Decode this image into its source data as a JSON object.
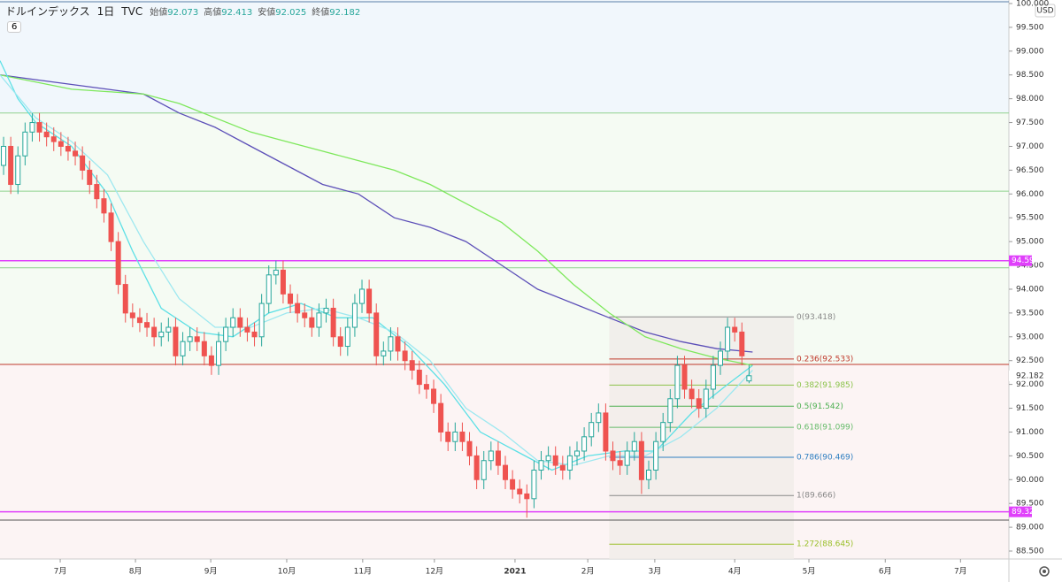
{
  "chart_data": {
    "type": "candlestick",
    "title": "ドルインデックス",
    "interval": "1日",
    "exchange": "TVC",
    "currency": "USD",
    "indicator_count": 6,
    "ohlc": [
      {
        "label": "始値",
        "value": 92.073
      },
      {
        "label": "高値",
        "value": 92.413
      },
      {
        "label": "安値",
        "value": 92.025
      },
      {
        "label": "終値",
        "value": 92.182
      }
    ],
    "xlim": [
      0,
      281.5
    ],
    "ylim": [
      88.333,
      100.074
    ],
    "xticks": [
      {
        "value": 16.8,
        "label": "7月"
      },
      {
        "value": 37.8,
        "label": "8月"
      },
      {
        "value": 58.8,
        "label": "9月"
      },
      {
        "value": 80,
        "label": "10月"
      },
      {
        "value": 101.2,
        "label": "11月"
      },
      {
        "value": 121.2,
        "label": "12月"
      },
      {
        "value": 143.7,
        "label": "2021"
      },
      {
        "value": 164,
        "label": "2月"
      },
      {
        "value": 182.7,
        "label": "3月"
      },
      {
        "value": 205,
        "label": "4月"
      },
      {
        "value": 225.7,
        "label": "5月"
      },
      {
        "value": 247,
        "label": "6月"
      },
      {
        "value": 268,
        "label": "7月"
      }
    ],
    "yticks": [
      {
        "value": 100,
        "label": "100.000"
      },
      {
        "value": 99.5,
        "label": "99.500"
      },
      {
        "value": 99,
        "label": "99.000"
      },
      {
        "value": 98.5,
        "label": "98.500"
      },
      {
        "value": 98,
        "label": "98.000"
      },
      {
        "value": 97.5,
        "label": "97.500"
      },
      {
        "value": 97,
        "label": "97.000"
      },
      {
        "value": 96.5,
        "label": "96.500"
      },
      {
        "value": 96,
        "label": "96.000"
      },
      {
        "value": 95.5,
        "label": "95.500"
      },
      {
        "value": 95,
        "label": "95.000"
      },
      {
        "value": 94.5,
        "label": "94.500"
      },
      {
        "value": 94,
        "label": "94.000"
      },
      {
        "value": 93.5,
        "label": "93.500"
      },
      {
        "value": 93,
        "label": "93.000"
      },
      {
        "value": 92.5,
        "label": "92.500"
      },
      {
        "value": 92,
        "label": "92.000"
      },
      {
        "value": 91.5,
        "label": "91.500"
      },
      {
        "value": 91,
        "label": "91.000"
      },
      {
        "value": 90.5,
        "label": "90.500"
      },
      {
        "value": 90,
        "label": "90.000"
      },
      {
        "value": 89.5,
        "label": "89.500"
      },
      {
        "value": 89,
        "label": "89.000"
      },
      {
        "value": 88.5,
        "label": "88.500"
      }
    ],
    "up_color": "#26a69a",
    "down_color": "#ef5350",
    "x": [
      1,
      3,
      5,
      7,
      9,
      11,
      13,
      15,
      17,
      19,
      21,
      23,
      25,
      27,
      29,
      31,
      33,
      35,
      37,
      39,
      41,
      43,
      45,
      47,
      49,
      51,
      53,
      55,
      57,
      59,
      61,
      63,
      65,
      67,
      69,
      71,
      73,
      75,
      77,
      79,
      81,
      83,
      85,
      87,
      89,
      91,
      93,
      95,
      97,
      99,
      101,
      103,
      105,
      107,
      109,
      111,
      113,
      115,
      117,
      119,
      121,
      123,
      125,
      127,
      129,
      131,
      133,
      135,
      137,
      139,
      141,
      143,
      145,
      147,
      149,
      151,
      153,
      155,
      157,
      159,
      161,
      163,
      165,
      167,
      169,
      171,
      173,
      175,
      177,
      179,
      181,
      183,
      185,
      187,
      189,
      191,
      193,
      195,
      197,
      199,
      201,
      203,
      205,
      207,
      209
    ],
    "open": [
      96.6,
      97.0,
      96.2,
      96.8,
      97.3,
      97.5,
      97.3,
      97.2,
      97.1,
      97.0,
      96.9,
      96.8,
      96.5,
      96.2,
      95.9,
      95.6,
      95.0,
      94.1,
      93.5,
      93.4,
      93.3,
      93.2,
      93.0,
      93.1,
      93.2,
      92.6,
      92.9,
      93.0,
      92.9,
      92.6,
      92.4,
      92.9,
      93.2,
      93.4,
      93.2,
      93.1,
      93.0,
      93.7,
      94.3,
      94.4,
      93.9,
      93.7,
      93.5,
      93.4,
      93.2,
      93.5,
      93.6,
      93.0,
      92.8,
      93.2,
      93.7,
      94.0,
      93.5,
      92.6,
      92.7,
      93.0,
      92.7,
      92.5,
      92.3,
      92.0,
      91.9,
      91.6,
      91.0,
      90.8,
      91.0,
      90.8,
      90.5,
      90.0,
      90.4,
      90.6,
      90.3,
      90.0,
      89.8,
      89.7,
      89.6,
      90.2,
      90.4,
      90.5,
      90.3,
      90.2,
      90.5,
      90.6,
      90.9,
      91.2,
      91.4,
      90.6,
      90.4,
      90.3,
      90.6,
      90.8,
      90.0,
      90.2,
      90.8,
      91.2,
      91.7,
      92.4,
      91.9,
      91.7,
      91.5,
      91.9,
      92.4,
      92.7,
      93.2,
      93.1,
      92.073
    ],
    "high": [
      97.2,
      97.2,
      97.0,
      97.5,
      97.7,
      97.7,
      97.5,
      97.4,
      97.3,
      97.2,
      97.1,
      97.0,
      96.7,
      96.4,
      96.1,
      95.8,
      95.2,
      94.3,
      93.7,
      93.6,
      93.5,
      93.4,
      93.3,
      93.4,
      93.4,
      93.1,
      93.2,
      93.2,
      93.1,
      92.8,
      93.1,
      93.4,
      93.6,
      93.6,
      93.4,
      93.3,
      93.9,
      94.5,
      94.6,
      94.6,
      94.1,
      93.9,
      93.7,
      93.6,
      93.7,
      93.8,
      93.8,
      93.2,
      93.4,
      93.9,
      94.2,
      94.2,
      93.7,
      92.9,
      93.2,
      93.2,
      92.9,
      92.7,
      92.5,
      92.2,
      92.1,
      91.8,
      91.2,
      91.2,
      91.2,
      91.0,
      90.7,
      90.6,
      90.8,
      90.8,
      90.5,
      90.2,
      90.0,
      89.9,
      90.4,
      90.6,
      90.7,
      90.7,
      90.5,
      90.7,
      90.8,
      91.1,
      91.4,
      91.6,
      91.6,
      90.8,
      90.6,
      90.8,
      91.0,
      91.0,
      90.4,
      91.0,
      91.4,
      91.9,
      92.6,
      92.6,
      92.1,
      91.9,
      92.1,
      92.6,
      92.9,
      93.4,
      93.4,
      93.3,
      92.413
    ],
    "low": [
      96.4,
      96.0,
      96.0,
      96.6,
      97.1,
      97.1,
      97.0,
      96.9,
      96.8,
      96.7,
      96.6,
      96.3,
      96.0,
      95.7,
      95.4,
      94.8,
      93.9,
      93.3,
      93.2,
      93.1,
      93.0,
      92.8,
      92.8,
      92.9,
      92.4,
      92.4,
      92.7,
      92.7,
      92.4,
      92.2,
      92.2,
      92.7,
      93.0,
      93.0,
      92.9,
      92.8,
      92.8,
      93.5,
      94.1,
      93.7,
      93.5,
      93.3,
      93.2,
      93.0,
      93.0,
      93.3,
      92.8,
      92.6,
      92.6,
      93.0,
      93.5,
      93.3,
      92.4,
      92.4,
      92.5,
      92.5,
      92.3,
      92.1,
      91.8,
      91.7,
      91.4,
      90.8,
      90.6,
      90.6,
      90.6,
      90.3,
      89.8,
      89.8,
      90.2,
      90.1,
      89.8,
      89.6,
      89.5,
      89.2,
      89.4,
      90.0,
      90.2,
      90.1,
      90.0,
      90.0,
      90.3,
      90.4,
      90.7,
      91.0,
      90.4,
      90.2,
      90.1,
      90.1,
      90.4,
      89.7,
      89.8,
      90.0,
      90.6,
      91.0,
      91.5,
      91.7,
      91.5,
      91.3,
      91.3,
      91.7,
      92.2,
      92.5,
      92.9,
      92.4,
      92.025
    ],
    "close": [
      97.0,
      96.2,
      96.8,
      97.3,
      97.5,
      97.3,
      97.2,
      97.1,
      97.0,
      96.9,
      96.8,
      96.5,
      96.2,
      95.9,
      95.6,
      95.0,
      94.1,
      93.5,
      93.4,
      93.3,
      93.2,
      93.0,
      93.1,
      93.2,
      92.6,
      92.9,
      93.0,
      92.9,
      92.6,
      92.4,
      92.9,
      93.2,
      93.4,
      93.2,
      93.1,
      93.0,
      93.7,
      94.3,
      94.4,
      93.9,
      93.7,
      93.5,
      93.4,
      93.2,
      93.5,
      93.6,
      93.0,
      92.8,
      93.2,
      93.7,
      94.0,
      93.5,
      92.6,
      92.7,
      93.0,
      92.7,
      92.5,
      92.3,
      92.0,
      91.9,
      91.6,
      91.0,
      90.8,
      91.0,
      90.8,
      90.5,
      90.0,
      90.4,
      90.6,
      90.3,
      90.0,
      89.8,
      89.7,
      89.6,
      90.2,
      90.4,
      90.5,
      90.3,
      90.2,
      90.5,
      90.6,
      90.9,
      91.2,
      91.4,
      90.6,
      90.4,
      90.3,
      90.6,
      90.8,
      90.0,
      90.2,
      90.8,
      91.2,
      91.7,
      92.4,
      91.9,
      91.7,
      91.5,
      91.9,
      92.4,
      92.7,
      93.2,
      93.1,
      92.6,
      92.182
    ],
    "lines": [
      {
        "color": "#5c4fb8",
        "x": [
          0,
          10,
          20,
          30,
          40,
          50,
          60,
          70,
          80,
          90,
          100,
          110,
          120,
          130,
          140,
          150,
          160,
          170,
          180,
          190,
          200,
          210
        ],
        "values": [
          98.5,
          98.4,
          98.3,
          98.2,
          98.1,
          97.7,
          97.4,
          97.0,
          96.6,
          96.2,
          96.0,
          95.5,
          95.3,
          95.0,
          94.5,
          94.0,
          93.7,
          93.4,
          93.1,
          92.9,
          92.75,
          92.68
        ]
      },
      {
        "color": "#7ee85c",
        "x": [
          0,
          10,
          20,
          30,
          40,
          50,
          60,
          70,
          80,
          90,
          100,
          110,
          120,
          130,
          140,
          150,
          160,
          170,
          180,
          190,
          200,
          210
        ],
        "values": [
          98.5,
          98.35,
          98.2,
          98.15,
          98.1,
          97.9,
          97.6,
          97.3,
          97.1,
          96.9,
          96.7,
          96.5,
          96.2,
          95.8,
          95.4,
          94.8,
          94.1,
          93.5,
          93.0,
          92.75,
          92.55,
          92.4
        ]
      },
      {
        "color": "#5ce0e6",
        "x": [
          0,
          5,
          10,
          20,
          30,
          37,
          45,
          55,
          65,
          75,
          84,
          94,
          104,
          114,
          124,
          134,
          144,
          154,
          164,
          174,
          183,
          193,
          203,
          210
        ],
        "values": [
          98.8,
          98.0,
          97.5,
          97.0,
          96.0,
          94.8,
          93.6,
          93.1,
          93.0,
          93.5,
          93.7,
          93.4,
          93.4,
          92.8,
          92.0,
          91.0,
          90.6,
          90.2,
          90.5,
          90.6,
          90.6,
          91.4,
          92.0,
          92.4
        ]
      },
      {
        "color": "#9ee8f0",
        "x": [
          0,
          10,
          20,
          30,
          40,
          50,
          60,
          70,
          80,
          90,
          100,
          110,
          120,
          130,
          140,
          150,
          160,
          170,
          180,
          190,
          200,
          210
        ],
        "values": [
          98.5,
          97.6,
          97.1,
          96.4,
          95.0,
          93.8,
          93.2,
          93.2,
          93.5,
          93.6,
          93.4,
          93.1,
          92.5,
          91.5,
          91.0,
          90.4,
          90.3,
          90.5,
          90.5,
          90.9,
          91.5,
          92.3
        ]
      }
    ],
    "hlines": [
      {
        "value": 97.7,
        "color": "#8fd28f"
      },
      {
        "value": 96.06,
        "color": "#8fd28f"
      },
      {
        "value": 94.45,
        "color": "#8fd28f"
      },
      {
        "value": 92.42,
        "color": "#c0392b"
      },
      {
        "value": 89.15,
        "color": "#555555"
      }
    ],
    "marked_levels": [
      {
        "value": 94.599,
        "color": "#e040fb"
      },
      {
        "value": 89.324,
        "color": "#e040fb"
      }
    ],
    "fib": {
      "x_range": [
        170,
        221.5
      ],
      "levels": [
        {
          "value": 93.418,
          "label": "0(93.418)",
          "color": "#888888"
        },
        {
          "value": 92.533,
          "label": "0.236(92.533)",
          "color": "#c0392b"
        },
        {
          "value": 91.985,
          "label": "0.382(91.985)",
          "color": "#8bc34a"
        },
        {
          "value": 91.542,
          "label": "0.5(91.542)",
          "color": "#4caf50"
        },
        {
          "value": 91.099,
          "label": "0.618(91.099)",
          "color": "#66bb6a"
        },
        {
          "value": 90.469,
          "label": "0.786(90.469)",
          "color": "#2f7fc1"
        },
        {
          "value": 89.666,
          "label": "1(89.666)",
          "color": "#888888"
        },
        {
          "value": 88.645,
          "label": "1.272(88.645)",
          "color": "#9bbf2a"
        }
      ]
    }
  }
}
